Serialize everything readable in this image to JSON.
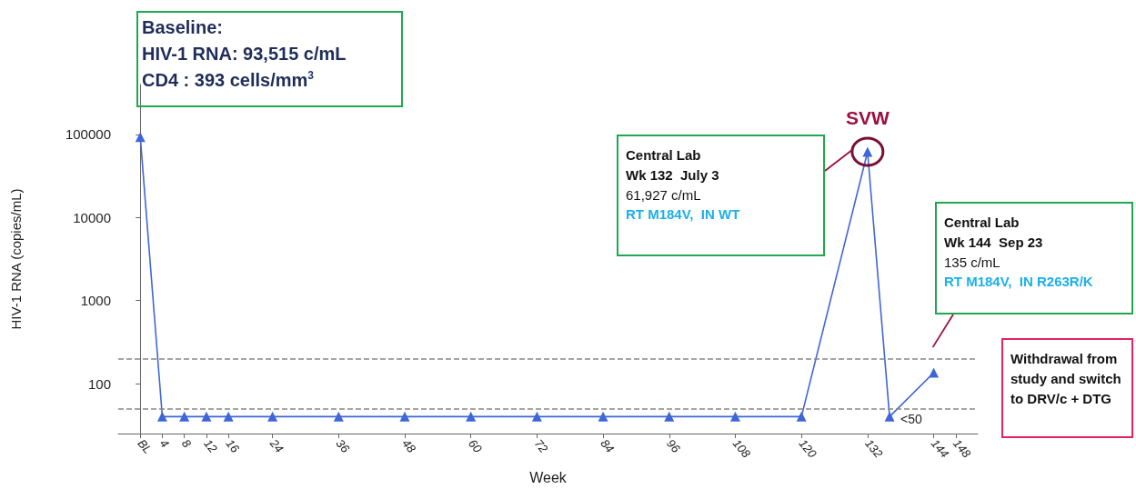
{
  "chart_data": {
    "type": "line",
    "xlabel": "Week",
    "ylabel": "HIV-1 RNA (copies/mL)",
    "x": [
      0,
      4,
      8,
      12,
      16,
      24,
      36,
      48,
      60,
      72,
      84,
      96,
      108,
      120,
      132,
      136,
      144
    ],
    "series": [
      {
        "color": "#3f66d8",
        "values": [
          93515,
          40,
          40,
          40,
          40,
          40,
          40,
          40,
          40,
          40,
          40,
          40,
          40,
          40,
          61927,
          40,
          135
        ]
      }
    ],
    "xlim": [
      -4,
      152
    ],
    "xticks": [
      {
        "value": 0,
        "label": "BL"
      },
      4,
      8,
      12,
      16,
      24,
      36,
      48,
      60,
      72,
      84,
      96,
      108,
      120,
      132,
      144,
      148
    ],
    "log": "y",
    "ylim": [
      25,
      400000
    ],
    "yticks": [
      100,
      1000,
      10000,
      100000
    ],
    "marker": "triangle",
    "grid": false,
    "ref_lines": [
      {
        "axis": "y",
        "value": 200,
        "color": "#888888",
        "line_style": "dashed"
      },
      {
        "axis": "y",
        "value": 50,
        "color": "#888888",
        "line_style": "dashed"
      }
    ],
    "annotations": [
      "Baseline:\nHIV-1 RNA: 93,515 c/mL\nCD4 : 393 cells/mm$^{3}$",
      {
        "text": "SVW",
        "x": 132,
        "y": 61927
      },
      "Central Lab\nWk 132  July 3\n61,927 c/mL\nRT M184V,  IN WT",
      "Central Lab\nWk 144  Sep 23\n135 c/mL\nRT M184V,  IN R263R/K",
      {
        "text": "<50",
        "x": 136,
        "y": 40
      },
      "Withdrawal from\nstudy and switch\nto DRV/c + DTG"
    ]
  }
}
